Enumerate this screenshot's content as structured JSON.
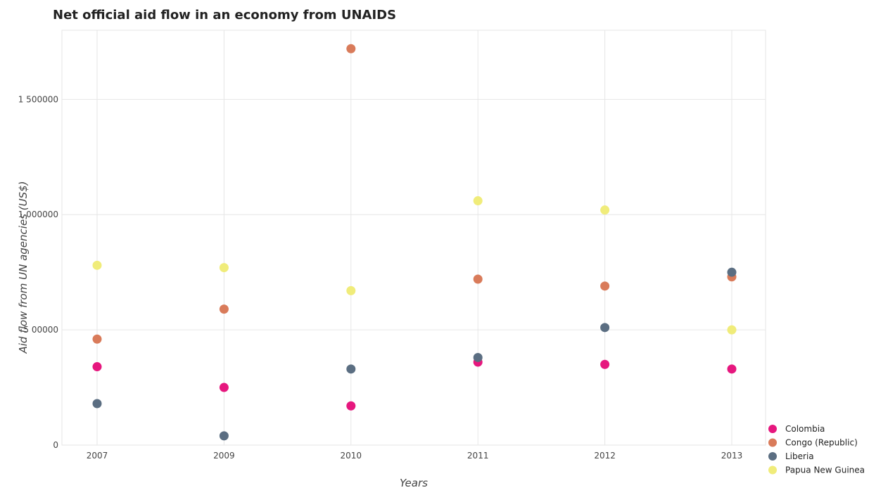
{
  "chart_data": {
    "type": "scatter",
    "title": "Net official aid flow in an economy from UNAIDS",
    "xlabel": "Years",
    "ylabel": "Aid flow from UN agencies (US$)",
    "categories": [
      "2007",
      "2009",
      "2010",
      "2011",
      "2012",
      "2013"
    ],
    "y_ticks": [
      0,
      500000,
      1000000,
      1500000
    ],
    "y_tick_labels": [
      "0",
      "5 00000",
      "1 000000",
      "1 500000"
    ],
    "ylim": [
      0,
      1800000
    ],
    "grid": true,
    "legend_position": "bottom-right",
    "series": [
      {
        "name": "Colombia",
        "color": "#e6177e",
        "values": [
          340000,
          250000,
          170000,
          360000,
          350000,
          330000
        ]
      },
      {
        "name": "Congo (Republic)",
        "color": "#d97b5a",
        "values": [
          460000,
          590000,
          1720000,
          720000,
          690000,
          730000
        ]
      },
      {
        "name": "Liberia",
        "color": "#5b6e82",
        "values": [
          180000,
          40000,
          330000,
          380000,
          510000,
          750000
        ]
      },
      {
        "name": "Papua New Guinea",
        "color": "#f0ec7a",
        "values": [
          780000,
          770000,
          670000,
          1060000,
          1020000,
          500000
        ]
      }
    ]
  }
}
